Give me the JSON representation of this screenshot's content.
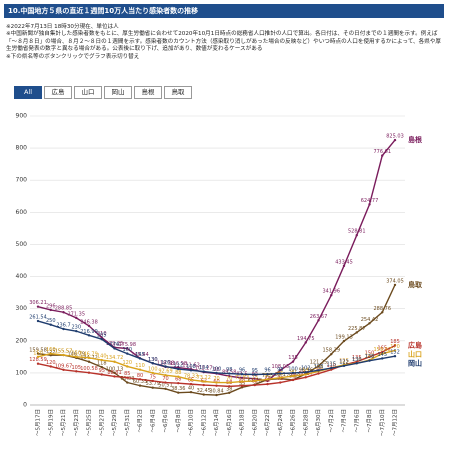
{
  "header": {
    "title": "10.中国地方５県の直近１週間10万人当たり感染者数の推移"
  },
  "notes": [
    "※2022年7月13日 18時30分現在、単位は人",
    "※中国新聞が独自集計した感染者数をもとに、厚生労働省に合わせて2020年10月1日時点の総務省人口推計の人口で算出。各日付は、その日付までの１週間を示す。例えば「～８月８日」の場合、８月２～８日の１週間を示す。感染者数のカウント方法（感染取り消しがあった場合の反映など）やいつ時点の人口を使用するかによって、各県や厚生労働省発表の数字と異なる場合がある。公表後に取り下げ、追加があり、数値が変わるケースがある",
    "※下の県名等のボタンクリックでグラフ表示切り替え"
  ],
  "buttons": [
    "All",
    "広島",
    "山口",
    "岡山",
    "島根",
    "鳥取"
  ],
  "chart_data": {
    "type": "line",
    "categories": [
      "～5月17日",
      "～5月19日",
      "～5月21日",
      "～5月23日",
      "～5月25日",
      "～5月27日",
      "～5月29日",
      "～5月31日",
      "～6月2日",
      "～6月4日",
      "～6月6日",
      "～6月8日",
      "～6月10日",
      "～6月12日",
      "～6月14日",
      "～6月16日",
      "～6月18日",
      "～6月20日",
      "～6月22日",
      "～6月24日",
      "～6月26日",
      "～6月28日",
      "～6月30日",
      "～7月2日",
      "～7月4日",
      "～7月6日",
      "～7月8日",
      "～7月10日",
      "～7月12日"
    ],
    "ylim": [
      0,
      900
    ],
    "yticks": [
      0,
      100,
      200,
      300,
      400,
      500,
      600,
      700,
      800,
      900
    ],
    "grid": true,
    "series": [
      {
        "name": "島根",
        "color": "#7a1c5c",
        "values": [
          306.21,
          296,
          288.85,
          271.35,
          246.38,
          210,
          179.25,
          175.98,
          145.44,
          130,
          118.58,
          116.58,
          111.62,
          102.27,
          98,
          89.58,
          84.5,
          82,
          75,
          108.03,
          135,
          194.75,
          263.67,
          341.96,
          433.45,
          528.81,
          624.77,
          776.61,
          825.03
        ]
      },
      {
        "name": "鳥取",
        "color": "#6b4a1e",
        "values": [
          159.58,
          155,
          155.57,
          146.79,
          134.72,
          118,
          100.13,
          70.03,
          60.35,
          53.79,
          50.51,
          38.36,
          40,
          32.45,
          30.84,
          38,
          55,
          63.78,
          79.3,
          82.1,
          78.09,
          96.96,
          121.25,
          158.29,
          199.13,
          225.87,
          254.42,
          288.76,
          374.05
        ]
      },
      {
        "name": "広島",
        "color": "#b8322a",
        "values": [
          128.59,
          120,
          109.67,
          105,
          100.58,
          95,
          88.81,
          85,
          80,
          75,
          70,
          68,
          65,
          62,
          60,
          58,
          60,
          62,
          65,
          70,
          78,
          86.37,
          98,
          110,
          125,
          135,
          150,
          165,
          185
        ]
      },
      {
        "name": "山口",
        "color": "#d9a21b",
        "values": [
          150,
          160,
          155.57,
          150,
          146.79,
          140,
          134.72,
          120,
          110,
          100,
          92.69,
          88,
          78.33,
          73.22,
          70,
          70,
          72.83,
          75,
          80,
          85,
          90,
          95,
          105,
          115,
          125,
          130,
          140,
          159.92,
          170
        ]
      },
      {
        "name": "岡山",
        "color": "#1f3c6e",
        "values": [
          261.54,
          250,
          236.7,
          230,
          216.99,
          205,
          176,
          160,
          145,
          130,
          120,
          112,
          108,
          104,
          100,
          98,
          96,
          95,
          96,
          98,
          100,
          102,
          108,
          115,
          122,
          130,
          138,
          145,
          152
        ]
      }
    ]
  }
}
